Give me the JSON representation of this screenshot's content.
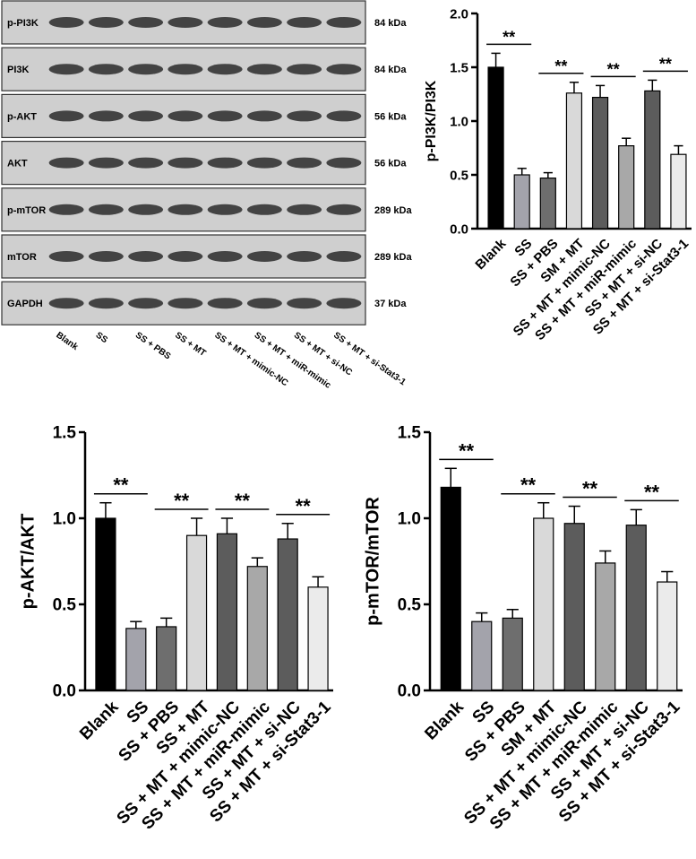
{
  "blot": {
    "rows": [
      {
        "protein": "p-PI3K",
        "size": "84 kDa"
      },
      {
        "protein": "PI3K",
        "size": "84 kDa"
      },
      {
        "protein": "p-AKT",
        "size": "56 kDa"
      },
      {
        "protein": "AKT",
        "size": "56 kDa"
      },
      {
        "protein": "p-mTOR",
        "size": "289 kDa"
      },
      {
        "protein": "mTOR",
        "size": "289 kDa"
      },
      {
        "protein": "GAPDH",
        "size": "37 kDa"
      }
    ],
    "lanes": [
      "Blank",
      "SS",
      "SS + PBS",
      "SS + MT",
      "SS + MT + mimic-NC",
      "SS + MT + miR-mimic",
      "SS + MT + si-NC",
      "SS + MT + si-Stat3-1"
    ]
  },
  "chart_data": [
    {
      "type": "bar",
      "ylabel": "p-PI3K/PI3K",
      "categories": [
        "Blank",
        "SS",
        "SS + PBS",
        "SM + MT",
        "SS + MT + mimic-NC",
        "SS + MT + miR-mimic",
        "SS + MT + si-NC",
        "SS + MT + si-Stat3-1"
      ],
      "values": [
        1.5,
        0.5,
        0.47,
        1.26,
        1.22,
        0.77,
        1.28,
        0.69
      ],
      "errors": [
        0.13,
        0.06,
        0.05,
        0.1,
        0.11,
        0.07,
        0.1,
        0.08
      ],
      "colors": [
        "#000000",
        "#a3a3ab",
        "#6e6e6e",
        "#d9d9d9",
        "#5c5c5c",
        "#a8a8a8",
        "#5c5c5c",
        "#ebebeb"
      ],
      "ylim": [
        0,
        2.0
      ],
      "yticks": [
        {
          "value": 0,
          "label": "0.0"
        },
        {
          "value": 0.5,
          "label": "0.5"
        },
        {
          "value": 1.0,
          "label": "1.0"
        },
        {
          "value": 1.5,
          "label": "1.5"
        },
        {
          "value": 2.0,
          "label": "2.0"
        }
      ],
      "significance": [
        {
          "label": "**",
          "categories": [
            "Blank",
            "SS"
          ]
        },
        {
          "label": "**",
          "categories": [
            "SS + PBS",
            "SM + MT"
          ]
        },
        {
          "label": "**",
          "categories": [
            "SS + MT + mimic-NC",
            "SS + MT + miR-mimic"
          ]
        },
        {
          "label": "**",
          "categories": [
            "SS + MT + si-NC",
            "SS + MT + si-Stat3-1"
          ]
        }
      ]
    },
    {
      "type": "bar",
      "ylabel": "p-AKT/AKT",
      "categories": [
        "Blank",
        "SS",
        "SS + PBS",
        "SS + MT",
        "SS + MT + mimic-NC",
        "SS + MT + miR-mimic",
        "SS + MT + si-NC",
        "SS + MT + si-Stat3-1"
      ],
      "values": [
        1.0,
        0.36,
        0.37,
        0.9,
        0.91,
        0.72,
        0.88,
        0.6
      ],
      "errors": [
        0.09,
        0.04,
        0.05,
        0.1,
        0.09,
        0.05,
        0.09,
        0.06
      ],
      "colors": [
        "#000000",
        "#a3a3ab",
        "#6e6e6e",
        "#d9d9d9",
        "#5c5c5c",
        "#a8a8a8",
        "#5c5c5c",
        "#ebebeb"
      ],
      "ylim": [
        0,
        1.5
      ],
      "yticks": [
        {
          "value": 0,
          "label": "0.0"
        },
        {
          "value": 0.5,
          "label": "0.5"
        },
        {
          "value": 1.0,
          "label": "1.0"
        },
        {
          "value": 1.5,
          "label": "1.5"
        }
      ],
      "significance": [
        {
          "label": "**",
          "categories": [
            "Blank",
            "SS"
          ]
        },
        {
          "label": "**",
          "categories": [
            "SS + PBS",
            "SS + MT"
          ]
        },
        {
          "label": "**",
          "categories": [
            "SS + MT + mimic-NC",
            "SS + MT + miR-mimic"
          ]
        },
        {
          "label": "**",
          "categories": [
            "SS + MT + si-NC",
            "SS + MT + si-Stat3-1"
          ]
        }
      ]
    },
    {
      "type": "bar",
      "ylabel": "p-mTOR/mTOR",
      "categories": [
        "Blank",
        "SS",
        "SS + PBS",
        "SM + MT",
        "SS + MT + mimic-NC",
        "SS + MT + miR-mimic",
        "SS + MT + si-NC",
        "SS + MT + si-Stat3-1"
      ],
      "values": [
        1.18,
        0.4,
        0.42,
        1.0,
        0.97,
        0.74,
        0.96,
        0.63
      ],
      "errors": [
        0.11,
        0.05,
        0.05,
        0.09,
        0.1,
        0.07,
        0.09,
        0.06
      ],
      "colors": [
        "#000000",
        "#a3a3ab",
        "#6e6e6e",
        "#d9d9d9",
        "#5c5c5c",
        "#a8a8a8",
        "#5c5c5c",
        "#ebebeb"
      ],
      "ylim": [
        0,
        1.5
      ],
      "yticks": [
        {
          "value": 0,
          "label": "0.0"
        },
        {
          "value": 0.5,
          "label": "0.5"
        },
        {
          "value": 1.0,
          "label": "1.0"
        },
        {
          "value": 1.5,
          "label": "1.5"
        }
      ],
      "significance": [
        {
          "label": "**",
          "categories": [
            "Blank",
            "SS"
          ]
        },
        {
          "label": "**",
          "categories": [
            "SS + PBS",
            "SM + MT"
          ]
        },
        {
          "label": "**",
          "categories": [
            "SS + MT + mimic-NC",
            "SS + MT + miR-mimic"
          ]
        },
        {
          "label": "**",
          "categories": [
            "SS + MT + si-NC",
            "SS + MT + si-Stat3-1"
          ]
        }
      ]
    }
  ]
}
